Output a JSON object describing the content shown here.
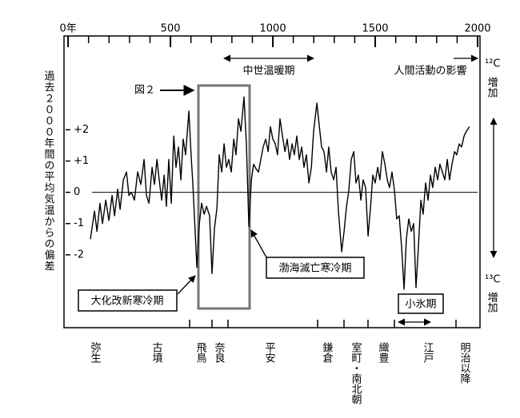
{
  "chart_data": {
    "type": "line",
    "ylabel": "過去２０００年間の平均気温からの偏差",
    "xlim": [
      -20,
      2000
    ],
    "xticks": [
      {
        "value": 0,
        "label": "0年"
      },
      500,
      1000,
      1500,
      2000
    ],
    "xminorticks": [
      100,
      200,
      300,
      400,
      600,
      700,
      800,
      900,
      1100,
      1200,
      1300,
      1400,
      1600,
      1700,
      1800,
      1900
    ],
    "ylim": [
      -4.33,
      5
    ],
    "yticks": [
      {
        "value": 2,
        "label": "+2"
      },
      {
        "value": 1,
        "label": "+1"
      },
      0,
      -1,
      -2
    ],
    "zero_line": true,
    "series": [
      {
        "color": "#000000",
        "x": [
          109,
          129,
          141,
          156,
          168,
          184,
          199,
          215,
          227,
          242,
          254,
          270,
          285,
          297,
          309,
          324,
          340,
          355,
          371,
          383,
          395,
          410,
          422,
          434,
          445,
          457,
          469,
          480,
          492,
          504,
          516,
          527,
          539,
          551,
          562,
          574,
          590,
          602,
          609,
          617,
          629,
          641,
          652,
          664,
          676,
          691,
          703,
          715,
          727,
          738,
          750,
          762,
          773,
          785,
          797,
          809,
          820,
          832,
          844,
          859,
          871,
          883,
          895,
          906,
          918,
          930,
          941,
          953,
          965,
          977,
          988,
          1000,
          1012,
          1023,
          1035,
          1047,
          1059,
          1070,
          1082,
          1094,
          1105,
          1117,
          1129,
          1141,
          1152,
          1164,
          1176,
          1188,
          1199,
          1215,
          1227,
          1238,
          1250,
          1262,
          1273,
          1285,
          1297,
          1309,
          1320,
          1336,
          1348,
          1359,
          1371,
          1383,
          1395,
          1406,
          1418,
          1430,
          1441,
          1453,
          1465,
          1477,
          1488,
          1500,
          1512,
          1523,
          1535,
          1547,
          1559,
          1570,
          1582,
          1594,
          1605,
          1617,
          1629,
          1641,
          1652,
          1664,
          1676,
          1688,
          1699,
          1711,
          1723,
          1734,
          1746,
          1758,
          1770,
          1781,
          1793,
          1805,
          1816,
          1828,
          1840,
          1852,
          1863,
          1875,
          1887,
          1898,
          1910,
          1922,
          1934,
          1945,
          1961
        ],
        "values": [
          -1.5,
          -0.6,
          -1.25,
          -0.35,
          -1.0,
          -0.25,
          -0.9,
          -0.1,
          -0.75,
          0.1,
          -0.55,
          0.4,
          0.65,
          -0.1,
          0,
          -0.25,
          0.65,
          0.25,
          1.05,
          -0.1,
          -0.35,
          0.8,
          0.25,
          1.05,
          0.4,
          -0.25,
          0.55,
          -0.45,
          1.05,
          -0.35,
          1.8,
          0.8,
          1.45,
          0.4,
          1.7,
          1.2,
          2.6,
          1.05,
          0.3,
          -0.75,
          -2.4,
          -1.0,
          -0.35,
          -0.7,
          -0.45,
          -0.75,
          -2.6,
          -1.15,
          -0.5,
          1.2,
          0.65,
          1.55,
          0.8,
          1.05,
          0.65,
          1.7,
          1.2,
          2.35,
          1.95,
          3.05,
          1.55,
          -1.1,
          0.4,
          0.9,
          0.75,
          0.65,
          1.05,
          1.45,
          1.7,
          1.3,
          2.1,
          1.7,
          1.55,
          1.2,
          2.35,
          1.8,
          1.3,
          1.7,
          1.05,
          1.55,
          1.2,
          1.8,
          1.05,
          1.45,
          0.8,
          1.2,
          0.3,
          0.8,
          1.95,
          2.85,
          2.1,
          1.45,
          1.3,
          0.65,
          1.45,
          0.65,
          0.4,
          0.8,
          -0.6,
          -1.9,
          -1.25,
          -0.5,
          0.05,
          1.05,
          1.3,
          0.3,
          0.55,
          -0.25,
          0.4,
          0.15,
          -1.4,
          -0.5,
          0.55,
          0.3,
          0.8,
          0.4,
          1.3,
          0.9,
          0.4,
          0.15,
          0.65,
          0.05,
          -0.85,
          -0.75,
          -1.75,
          -3.1,
          -1.5,
          -0.85,
          -1.25,
          -1.0,
          -3.05,
          -1.75,
          -0.25,
          -0.7,
          0.3,
          -0.25,
          0.55,
          0.15,
          0.8,
          0.4,
          0.9,
          0.65,
          0.4,
          1.05,
          0.4,
          0.9,
          1.3,
          1.2,
          1.55,
          1.45,
          1.8,
          1.95,
          2.1
        ]
      }
    ],
    "eras": [
      "弥生",
      "古墳",
      "飛鳥",
      "奈良",
      "平安",
      "鎌倉",
      "室町・南北朝",
      "織豊",
      "江戸",
      "明治以降"
    ],
    "annotations": {
      "medieval_warm": "中世温暖期",
      "human_impact": "人間活動の影響",
      "figure_ref": "図２",
      "taika": "大化改新寒冷期",
      "bohai": "渤海滅亡寒冷期",
      "little_ice_age": "小氷期",
      "c12": "¹²C",
      "c13": "¹³C",
      "increase": "増加"
    }
  }
}
